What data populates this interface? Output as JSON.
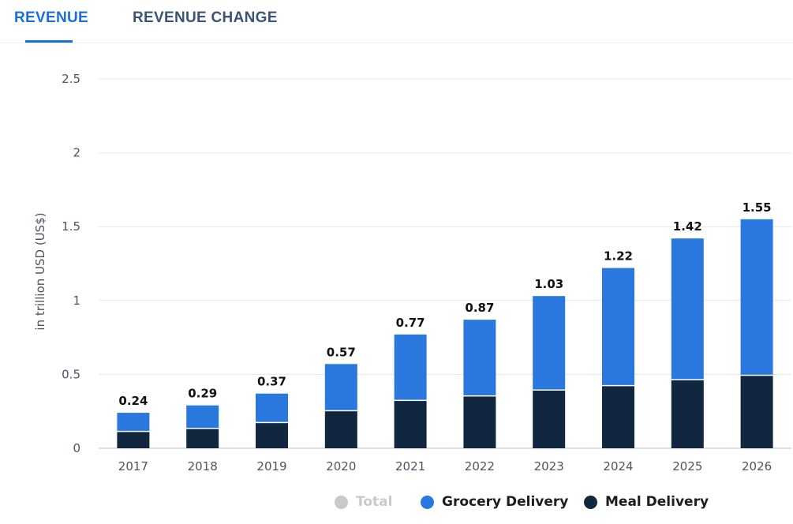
{
  "tabs": [
    {
      "label": "REVENUE",
      "active": true
    },
    {
      "label": "REVENUE CHANGE",
      "active": false
    }
  ],
  "colors": {
    "active_tab": "#1a6fd6",
    "inactive_tab": "#3a5478",
    "grocery": "#2a78de",
    "meal": "#11263f",
    "total_disabled": "#c9c9c9"
  },
  "legend": [
    {
      "label": "Total",
      "color": "#c9c9c9",
      "enabled": false
    },
    {
      "label": "Grocery Delivery",
      "color": "#2a78de",
      "enabled": true
    },
    {
      "label": "Meal Delivery",
      "color": "#11263f",
      "enabled": true
    }
  ],
  "chart_data": {
    "type": "bar",
    "stacked": true,
    "categories": [
      "2017",
      "2018",
      "2019",
      "2020",
      "2021",
      "2022",
      "2023",
      "2024",
      "2025",
      "2026"
    ],
    "series": [
      {
        "name": "Meal Delivery",
        "values": [
          0.11,
          0.13,
          0.17,
          0.25,
          0.32,
          0.35,
          0.39,
          0.42,
          0.46,
          0.49
        ]
      },
      {
        "name": "Grocery Delivery",
        "values": [
          0.13,
          0.16,
          0.2,
          0.32,
          0.45,
          0.52,
          0.64,
          0.8,
          0.96,
          1.06
        ]
      }
    ],
    "totals": [
      "0.24",
      "0.29",
      "0.37",
      "0.57",
      "0.77",
      "0.87",
      "1.03",
      "1.22",
      "1.42",
      "1.55"
    ],
    "ylabel": "in trillion USD (US$)",
    "yticks": [
      "0",
      "0.5",
      "1",
      "1.5",
      "2",
      "2.5"
    ],
    "ylim": [
      0,
      2.5
    ],
    "grid": true,
    "legend_position": "bottom"
  }
}
